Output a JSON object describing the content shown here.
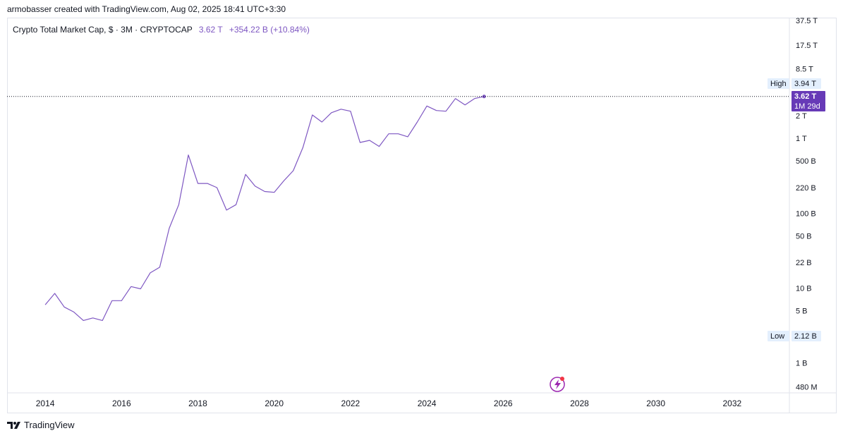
{
  "caption": "armobasser created with TradingView.com, Aug 02, 2025 18:41 UTC+3:30",
  "legend": {
    "symbol": "Crypto Total Market Cap, $ · 3M · CRYPTOCAP",
    "price": "3.62 T",
    "change": "+354.22 B (+10.84%)"
  },
  "markers": {
    "high_label": "High",
    "high_value": "3.94 T",
    "low_label": "Low",
    "low_value": "2.12 B",
    "last_price": "3.62 T",
    "countdown": "1M 29d"
  },
  "footer": {
    "brand": "TradingView"
  },
  "colors": {
    "line": "#7e57c2",
    "last_price_bg": "#673ab7",
    "marker_bg": "#e3effd",
    "grid": "#e0e3eb"
  },
  "icons": {
    "footer_logo": "tradingview-logo-icon",
    "event": "lightning-icon"
  },
  "chart_data": {
    "type": "line",
    "title": "Crypto Total Market Cap, $ · 3M · CRYPTOCAP",
    "scale": "log",
    "ylim": [
      400000000,
      40000000000000
    ],
    "xlim": [
      2013.0,
      2033.5
    ],
    "x_ticks": [
      {
        "value": 2014,
        "label": "2014"
      },
      {
        "value": 2016,
        "label": "2016"
      },
      {
        "value": 2018,
        "label": "2018"
      },
      {
        "value": 2020,
        "label": "2020"
      },
      {
        "value": 2022,
        "label": "2022"
      },
      {
        "value": 2024,
        "label": "2024"
      },
      {
        "value": 2026,
        "label": "2026"
      },
      {
        "value": 2028,
        "label": "2028"
      },
      {
        "value": 2030,
        "label": "2030"
      },
      {
        "value": 2032,
        "label": "2032"
      }
    ],
    "y_ticks": [
      {
        "value": 37500000000000,
        "label": "37.5 T"
      },
      {
        "value": 17500000000000,
        "label": "17.5 T"
      },
      {
        "value": 8500000000000,
        "label": "8.5 T"
      },
      {
        "value": 2000000000000,
        "label": "2 T"
      },
      {
        "value": 1000000000000,
        "label": "1 T"
      },
      {
        "value": 500000000000,
        "label": "500 B"
      },
      {
        "value": 220000000000,
        "label": "220 B"
      },
      {
        "value": 100000000000,
        "label": "100 B"
      },
      {
        "value": 50000000000,
        "label": "50 B"
      },
      {
        "value": 22000000000,
        "label": "22 B"
      },
      {
        "value": 10000000000,
        "label": "10 B"
      },
      {
        "value": 5000000000,
        "label": "5 B"
      },
      {
        "value": 1000000000,
        "label": "1 B"
      },
      {
        "value": 480000000,
        "label": "480 M"
      }
    ],
    "high": 3940000000000,
    "low": 2120000000,
    "last": 3620000000000,
    "series": [
      {
        "x": [
          2014.0,
          2014.25,
          2014.5,
          2014.75,
          2015.0,
          2015.25,
          2015.5,
          2015.75,
          2016.0,
          2016.25,
          2016.5,
          2016.75,
          2017.0,
          2017.25,
          2017.5,
          2017.75,
          2018.0,
          2018.25,
          2018.5,
          2018.75,
          2019.0,
          2019.25,
          2019.5,
          2019.75,
          2020.0,
          2020.25,
          2020.5,
          2020.75,
          2021.0,
          2021.25,
          2021.5,
          2021.75,
          2022.0,
          2022.25,
          2022.5,
          2022.75,
          2023.0,
          2023.25,
          2023.5,
          2023.75,
          2024.0,
          2024.25,
          2024.5,
          2024.75,
          2025.0,
          2025.25,
          2025.5
        ],
        "values": [
          6000000000,
          8500000000,
          5600000000,
          4800000000,
          3700000000,
          4000000000,
          3700000000,
          6800000000,
          6800000000,
          10500000000,
          9800000000,
          16000000000,
          19000000000,
          63000000000,
          130000000000,
          600000000000,
          250000000000,
          250000000000,
          220000000000,
          110000000000,
          130000000000,
          330000000000,
          230000000000,
          195000000000,
          190000000000,
          270000000000,
          370000000000,
          750000000000,
          2050000000000,
          1650000000000,
          2200000000000,
          2450000000000,
          2300000000000,
          880000000000,
          940000000000,
          780000000000,
          1150000000000,
          1150000000000,
          1050000000000,
          1650000000000,
          2700000000000,
          2350000000000,
          2300000000000,
          3400000000000,
          2800000000000,
          3400000000000,
          3620000000000
        ]
      }
    ]
  }
}
